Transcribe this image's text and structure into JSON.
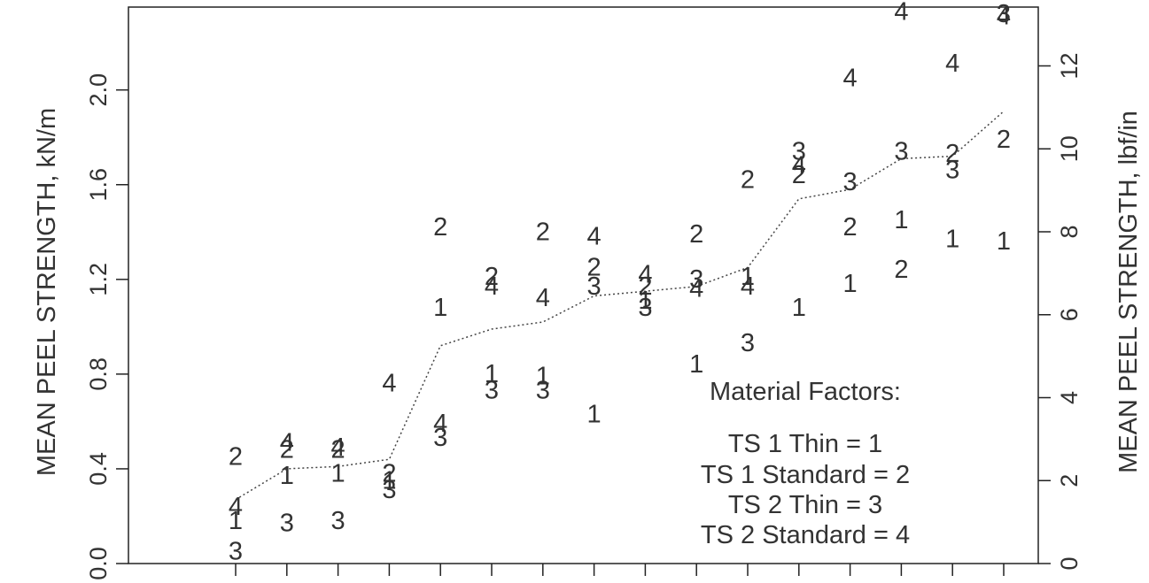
{
  "chart_data": {
    "type": "scatter",
    "ylabel_left": "MEAN PEEL STRENGTH, kN/m",
    "ylabel_right": "MEAN PEEL STRENGTH, lbf/in",
    "ylim": [
      0.0,
      2.35
    ],
    "yticks_left": [
      "0.0",
      "0.4",
      "0.8",
      "1.2",
      "1.6",
      "2.0"
    ],
    "yticks_left_values": [
      0.0,
      0.4,
      0.8,
      1.2,
      1.6,
      2.0
    ],
    "yticks_right": [
      "0",
      "2",
      "4",
      "6",
      "8",
      "10",
      "12"
    ],
    "yticks_right_values": [
      0,
      2,
      4,
      6,
      8,
      10,
      12
    ],
    "lbf_per_kNm": 5.71,
    "n_x": 16,
    "grid": false,
    "legend": {
      "placement": "bottom-right",
      "title": "Material Factors:",
      "entries": [
        "TS 1 Thin   = 1",
        "TS 1 Standard  = 2",
        "TS 2 Thin   = 3",
        "TS 2 Standard  = 4"
      ]
    },
    "series": [
      {
        "name": "TS 1 Thin",
        "symbol": "1",
        "x": [
          1,
          2,
          3,
          4,
          5,
          6,
          7,
          8,
          9,
          10,
          11,
          12,
          13,
          14,
          15,
          16
        ],
        "y": [
          0.18,
          0.37,
          0.38,
          0.35,
          1.08,
          0.8,
          0.79,
          0.63,
          1.11,
          0.84,
          1.21,
          1.08,
          1.18,
          1.45,
          1.37,
          1.36
        ]
      },
      {
        "name": "TS 1 Standard",
        "symbol": "2",
        "x": [
          1,
          2,
          3,
          4,
          5,
          6,
          7,
          8,
          9,
          10,
          11,
          12,
          13,
          14,
          15,
          16
        ],
        "y": [
          0.45,
          0.48,
          0.48,
          0.38,
          1.42,
          1.21,
          1.4,
          1.25,
          1.17,
          1.39,
          1.62,
          1.64,
          1.42,
          1.24,
          1.73,
          1.79
        ]
      },
      {
        "name": "TS 2 Thin",
        "symbol": "3",
        "x": [
          1,
          2,
          3,
          4,
          5,
          6,
          7,
          8,
          9,
          10,
          11,
          12,
          13,
          14,
          15,
          16
        ],
        "y": [
          0.05,
          0.17,
          0.18,
          0.31,
          0.53,
          0.73,
          0.73,
          1.17,
          1.08,
          1.2,
          0.93,
          1.74,
          1.61,
          1.74,
          1.66,
          2.32
        ]
      },
      {
        "name": "TS 2 Standard",
        "symbol": "4",
        "x": [
          1,
          2,
          3,
          4,
          5,
          6,
          7,
          8,
          9,
          10,
          11,
          12,
          13,
          14,
          15,
          16
        ],
        "y": [
          0.24,
          0.51,
          0.49,
          0.76,
          0.59,
          1.17,
          1.12,
          1.38,
          1.22,
          1.16,
          1.17,
          1.68,
          2.05,
          2.33,
          2.11,
          2.31
        ]
      }
    ],
    "mean_line": {
      "x": [
        1,
        2,
        3,
        4,
        5,
        6,
        7,
        8,
        9,
        10,
        11,
        12,
        13,
        14,
        15,
        16
      ],
      "y": [
        0.27,
        0.4,
        0.41,
        0.44,
        0.92,
        0.99,
        1.02,
        1.13,
        1.15,
        1.17,
        1.25,
        1.54,
        1.58,
        1.71,
        1.72,
        1.91
      ]
    }
  }
}
